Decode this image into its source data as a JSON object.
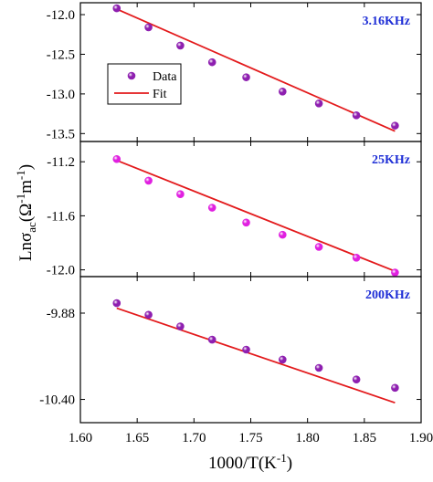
{
  "chart_data": {
    "type": "scatter",
    "xlabel": "1000/T(K-1)",
    "ylabel": "Lnσac(Ω-1m-1)",
    "xlim": [
      1.6,
      1.9
    ],
    "x_ticks": [
      "1.60",
      "1.65",
      "1.70",
      "1.75",
      "1.80",
      "1.85",
      "1.90"
    ],
    "legend": {
      "position": "top-left",
      "data_label": "Data",
      "fit_label": "Fit"
    },
    "colors": {
      "fit": "#e31a1c",
      "data_purple": "#8e1fb0",
      "data_magenta": "#e020e0",
      "freq_label": "#1f2fd6"
    },
    "panels": [
      {
        "label": "3.16KHz",
        "ylim": [
          -13.6,
          -11.85
        ],
        "y_ticks": [
          "-12.0",
          "-12.5",
          "-13.0",
          "-13.5"
        ],
        "data_color": "#8e1fb0",
        "x": [
          1.632,
          1.66,
          1.688,
          1.716,
          1.746,
          1.778,
          1.81,
          1.843,
          1.877
        ],
        "y": [
          -11.92,
          -12.16,
          -12.39,
          -12.6,
          -12.79,
          -12.97,
          -13.12,
          -13.27,
          -13.4
        ],
        "fit": [
          [
            1.632,
            -11.93
          ],
          [
            1.877,
            -13.47
          ]
        ]
      },
      {
        "label": "25KHz",
        "ylim": [
          -12.05,
          -11.05
        ],
        "y_ticks": [
          "-11.2",
          "-11.6",
          "-12.0"
        ],
        "data_color": "#e020e0",
        "x": [
          1.632,
          1.66,
          1.688,
          1.716,
          1.746,
          1.778,
          1.81,
          1.843,
          1.877
        ],
        "y": [
          -11.18,
          -11.34,
          -11.44,
          -11.54,
          -11.65,
          -11.74,
          -11.83,
          -11.91,
          -12.02
        ],
        "fit": [
          [
            1.632,
            -11.19
          ],
          [
            1.877,
            -12.01
          ]
        ]
      },
      {
        "label": "200KHz",
        "ylim": [
          -10.54,
          -9.66
        ],
        "y_ticks": [
          "-9.88",
          "-10.40"
        ],
        "data_color": "#8e1fb0",
        "x": [
          1.632,
          1.66,
          1.688,
          1.716,
          1.746,
          1.778,
          1.81,
          1.843,
          1.877
        ],
        "y": [
          -9.82,
          -9.89,
          -9.96,
          -10.04,
          -10.1,
          -10.16,
          -10.21,
          -10.28,
          -10.33
        ],
        "fit": [
          [
            1.632,
            -9.85
          ],
          [
            1.877,
            -10.42
          ]
        ]
      }
    ]
  }
}
